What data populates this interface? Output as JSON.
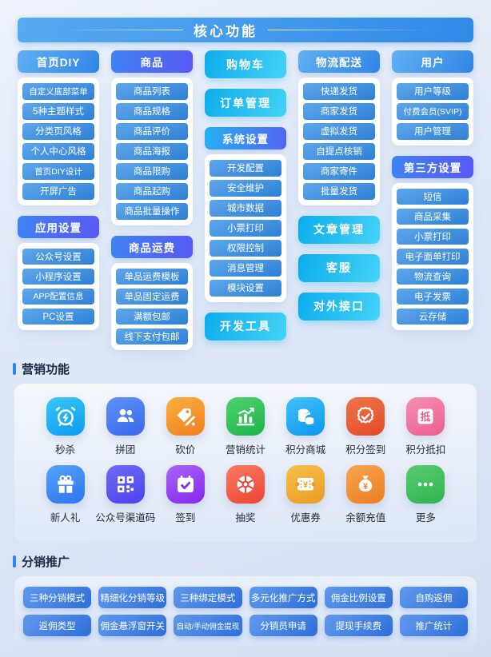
{
  "banner": {
    "title": "核心功能"
  },
  "core": {
    "columns": [
      {
        "blocks": [
          {
            "type": "group",
            "header": "首页DIY",
            "style": "blue",
            "items": [
              "自定义底部菜单",
              "5种主题样式",
              "分类页风格",
              "个人中心风格",
              "首页DIY设计",
              "开屏广告"
            ]
          },
          {
            "type": "group",
            "header": "应用设置",
            "style": "indigo",
            "items": [
              "公众号设置",
              "小程序设置",
              "APP配置信息",
              "PC设置"
            ]
          }
        ]
      },
      {
        "blocks": [
          {
            "type": "group",
            "header": "商品",
            "style": "indigo",
            "items": [
              "商品列表",
              "商品规格",
              "商品评价",
              "商品海报",
              "商品限购",
              "商品起购",
              "商品批量操作"
            ]
          },
          {
            "type": "group",
            "header": "商品运费",
            "style": "indigo",
            "items": [
              "单品运费模板",
              "单品固定运费",
              "满额包邮",
              "线下支付包邮"
            ]
          }
        ]
      },
      {
        "blocks": [
          {
            "type": "solo",
            "label": "购物车"
          },
          {
            "type": "solo",
            "label": "订单管理"
          },
          {
            "type": "group",
            "header": "系统设置",
            "style": "mix",
            "items": [
              "开发配置",
              "安全维护",
              "城市数据",
              "小票打印",
              "权限控制",
              "消息管理",
              "模块设置"
            ]
          },
          {
            "type": "solo",
            "label": "开发工具"
          }
        ]
      },
      {
        "blocks": [
          {
            "type": "group",
            "header": "物流配送",
            "style": "blue",
            "items": [
              "快递发货",
              "商家发货",
              "虚拟发货",
              "自提点核销",
              "商家寄件",
              "批量发货"
            ]
          },
          {
            "type": "solo",
            "label": "文章管理"
          },
          {
            "type": "solo",
            "label": "客服"
          },
          {
            "type": "solo",
            "label": "对外接口"
          }
        ]
      },
      {
        "blocks": [
          {
            "type": "group",
            "header": "用户",
            "style": "blue",
            "items": [
              "用户等级",
              "付费会员(SVIP)",
              "用户管理"
            ]
          },
          {
            "type": "group",
            "header": "第三方设置",
            "style": "indigo",
            "items": [
              "短信",
              "商品采集",
              "小票打印",
              "电子面单打印",
              "物流查询",
              "电子发票",
              "云存储"
            ]
          }
        ]
      }
    ]
  },
  "marketing": {
    "title": "营销功能",
    "rows": [
      [
        {
          "label": "秒杀",
          "icon": "alarm-clock-icon",
          "from": "#3cc6f8",
          "to": "#099bf0"
        },
        {
          "label": "拼团",
          "icon": "group-buy-people-icon",
          "from": "#5e93f8",
          "to": "#3a66ee"
        },
        {
          "label": "砍价",
          "icon": "bargain-tag-icon",
          "from": "#f9b03f",
          "to": "#f07f1f"
        },
        {
          "label": "营销统计",
          "icon": "chart-stats-icon",
          "from": "#4fd36c",
          "to": "#1cb34a"
        },
        {
          "label": "积分商城",
          "icon": "points-mall-coins-icon",
          "from": "#3fc3f8",
          "to": "#0e95ee"
        },
        {
          "label": "积分签到",
          "icon": "points-checkin-badge-icon",
          "from": "#f0764a",
          "to": "#e14a28"
        },
        {
          "label": "积分抵扣",
          "icon": "points-deduct-icon",
          "from": "#f78fb5",
          "to": "#ec5d90"
        }
      ],
      [
        {
          "label": "新人礼",
          "icon": "newcomer-gift-icon",
          "from": "#55a3f8",
          "to": "#2d74ee"
        },
        {
          "label": "公众号渠道码",
          "icon": "qr-code-icon",
          "from": "#6f6cf6",
          "to": "#4b42ec"
        },
        {
          "label": "签到",
          "icon": "sign-in-calendar-icon",
          "from": "#a963f7",
          "to": "#8428ec"
        },
        {
          "label": "抽奖",
          "icon": "lucky-draw-wheel-icon",
          "from": "#f87a62",
          "to": "#ee4434"
        },
        {
          "label": "优惠券",
          "icon": "coupon-ticket-icon",
          "from": "#f6c14d",
          "to": "#eb9a22"
        },
        {
          "label": "余额充值",
          "icon": "balance-moneybag-icon",
          "from": "#f6a54e",
          "to": "#ed7d22"
        },
        {
          "label": "更多",
          "icon": "more-ellipsis-icon",
          "from": "#5ccb70",
          "to": "#2cb44e"
        }
      ]
    ]
  },
  "distribution": {
    "title": "分销推广",
    "rows": [
      [
        "三种分销模式",
        "精细化分销等级",
        "三种绑定模式",
        "多元化推广方式",
        "佣金比例设置",
        "自购返佣"
      ],
      [
        "返佣类型",
        "佣金悬浮窗开关",
        "自动/手动佣金提现",
        "分销员申请",
        "提现手续费",
        "推广统计"
      ]
    ]
  },
  "colors": {
    "accent_blue": "#2f86f2",
    "header_blue": "#2f85e5",
    "header_indigo": "#5a58f3",
    "solo_cyan": "#0cacea",
    "item_blue": "#2e7fd6",
    "banner_blue": "#318ae7",
    "dist_button_blue": "#2f6fd8",
    "section_title_text": "#1c2a44"
  }
}
